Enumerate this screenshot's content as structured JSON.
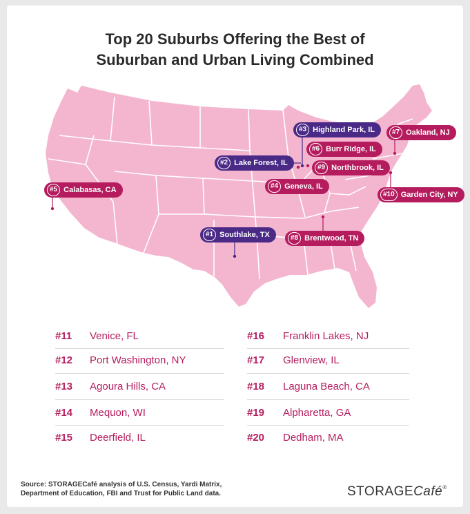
{
  "title": {
    "line1": "Top 20 Suburbs Offering the Best of",
    "line2": "Suburban and Urban Living Combined"
  },
  "colors": {
    "map_fill": "#f4b5cf",
    "state_border": "#ffffff",
    "purple": "#4a2a86",
    "magenta": "#b51c5e"
  },
  "map_pins": [
    {
      "rank": "#1",
      "name": "Southlake, TX",
      "color": "purple"
    },
    {
      "rank": "#2",
      "name": "Lake Forest, IL",
      "color": "purple"
    },
    {
      "rank": "#3",
      "name": "Highland Park, IL",
      "color": "purple"
    },
    {
      "rank": "#4",
      "name": "Geneva, IL",
      "color": "magenta"
    },
    {
      "rank": "#5",
      "name": "Calabasas, CA",
      "color": "magenta"
    },
    {
      "rank": "#6",
      "name": "Burr Ridge, IL",
      "color": "magenta"
    },
    {
      "rank": "#7",
      "name": "Oakland, NJ",
      "color": "magenta"
    },
    {
      "rank": "#8",
      "name": "Brentwood, TN",
      "color": "magenta"
    },
    {
      "rank": "#9",
      "name": "Northbrook, IL",
      "color": "magenta"
    },
    {
      "rank": "#10",
      "name": "Garden City, NY",
      "color": "magenta"
    }
  ],
  "list": {
    "left": [
      {
        "rank": "#11",
        "name": "Venice, FL"
      },
      {
        "rank": "#12",
        "name": "Port Washington, NY"
      },
      {
        "rank": "#13",
        "name": "Agoura Hills, CA"
      },
      {
        "rank": "#14",
        "name": "Mequon, WI"
      },
      {
        "rank": "#15",
        "name": "Deerfield, IL"
      }
    ],
    "right": [
      {
        "rank": "#16",
        "name": "Franklin Lakes, NJ"
      },
      {
        "rank": "#17",
        "name": "Glenview, IL"
      },
      {
        "rank": "#18",
        "name": "Laguna Beach, CA"
      },
      {
        "rank": "#19",
        "name": "Alpharetta, GA"
      },
      {
        "rank": "#20",
        "name": "Dedham, MA"
      }
    ]
  },
  "source": {
    "line1": "Source: STORAGECafé analysis of U.S. Census, Yardi Matrix,",
    "line2": "Department of Education, FBI and Trust for Public Land data."
  },
  "logo": {
    "storage": "STORAGE",
    "cafe": "Café",
    "reg": "®"
  }
}
